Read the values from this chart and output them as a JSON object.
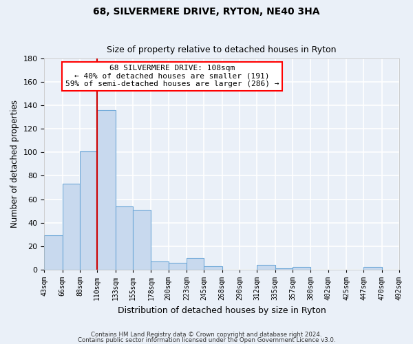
{
  "title": "68, SILVERMERE DRIVE, RYTON, NE40 3HA",
  "subtitle": "Size of property relative to detached houses in Ryton",
  "xlabel": "Distribution of detached houses by size in Ryton",
  "ylabel": "Number of detached properties",
  "bar_color": "#c8d9ee",
  "bar_edge_color": "#6ea8d8",
  "bin_labels": [
    "43sqm",
    "66sqm",
    "88sqm",
    "110sqm",
    "133sqm",
    "155sqm",
    "178sqm",
    "200sqm",
    "223sqm",
    "245sqm",
    "268sqm",
    "290sqm",
    "312sqm",
    "335sqm",
    "357sqm",
    "380sqm",
    "402sqm",
    "425sqm",
    "447sqm",
    "470sqm",
    "492sqm"
  ],
  "bar_heights": [
    29,
    73,
    101,
    136,
    54,
    51,
    7,
    6,
    10,
    3,
    0,
    0,
    4,
    1,
    2,
    0,
    0,
    0,
    2,
    0,
    0
  ],
  "ylim": [
    0,
    180
  ],
  "yticks": [
    0,
    20,
    40,
    60,
    80,
    100,
    120,
    140,
    160,
    180
  ],
  "vline_x": 110,
  "bin_edges": [
    43,
    66,
    88,
    110,
    133,
    155,
    178,
    200,
    223,
    245,
    268,
    290,
    312,
    335,
    357,
    380,
    402,
    425,
    447,
    470,
    492
  ],
  "annotation_title": "68 SILVERMERE DRIVE: 108sqm",
  "annotation_line1": "← 40% of detached houses are smaller (191)",
  "annotation_line2": "59% of semi-detached houses are larger (286) →",
  "footer1": "Contains HM Land Registry data © Crown copyright and database right 2024.",
  "footer2": "Contains public sector information licensed under the Open Government Licence v3.0.",
  "background_color": "#eaf0f8",
  "grid_color": "#ffffff",
  "vline_color": "#cc0000"
}
